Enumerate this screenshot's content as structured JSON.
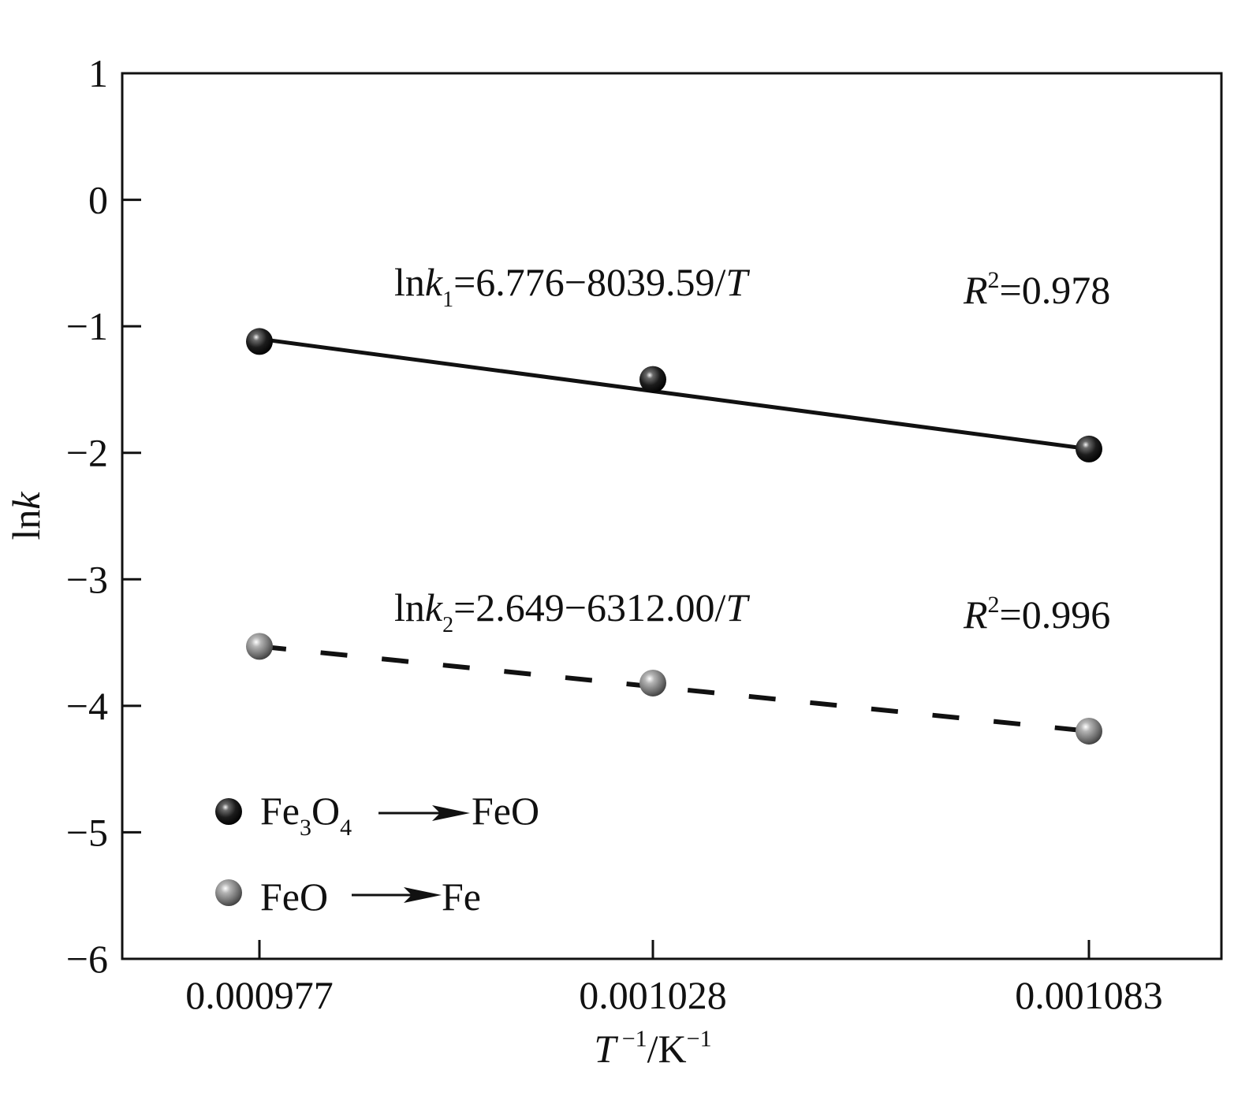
{
  "chart_data": {
    "type": "scatter",
    "xlabel": {
      "base": "T",
      "exp1": " −1",
      "mid": "/K",
      "exp2": "−1"
    },
    "ylabel": {
      "pre": "ln",
      "italic": "k"
    },
    "x_ticks": [
      "0.000977",
      "0.001028",
      "0.001083"
    ],
    "y_ticks": [
      "1",
      "0",
      "−1",
      "−2",
      "−3",
      "−4",
      "−5",
      "−6"
    ],
    "ylim": [
      -6,
      1
    ],
    "grid": false,
    "legend_position": "bottom-left",
    "x_positions": [
      0.000977,
      0.001028,
      0.001083
    ],
    "series": [
      {
        "name_parts": [
          "Fe",
          "3",
          "O",
          "4",
          "FeO"
        ],
        "color": "#1a1a1a",
        "line_style": "solid",
        "x": [
          0.000977,
          0.001028,
          0.001083
        ],
        "y": [
          -1.12,
          -1.42,
          -1.97
        ],
        "fit": [
          -1.1,
          -1.97
        ],
        "equation": {
          "pre": "ln",
          "k": "k",
          "sub": "1",
          "rhs": "=6.776−8039.59/",
          "T": "T"
        },
        "r2": {
          "R": "R",
          "sup": "2",
          "val": "=0.978"
        }
      },
      {
        "name_parts": [
          "FeO",
          "Fe"
        ],
        "color": "#7a7a7a",
        "line_style": "dashed",
        "x": [
          0.000977,
          0.001028,
          0.001083
        ],
        "y": [
          -3.53,
          -3.82,
          -4.2
        ],
        "fit": [
          -3.53,
          -4.2
        ],
        "equation": {
          "pre": "ln",
          "k": "k",
          "sub": "2",
          "rhs": "=2.649−6312.00/",
          "T": "T"
        },
        "r2": {
          "R": "R",
          "sup": "2",
          "val": "=0.996"
        }
      }
    ]
  }
}
